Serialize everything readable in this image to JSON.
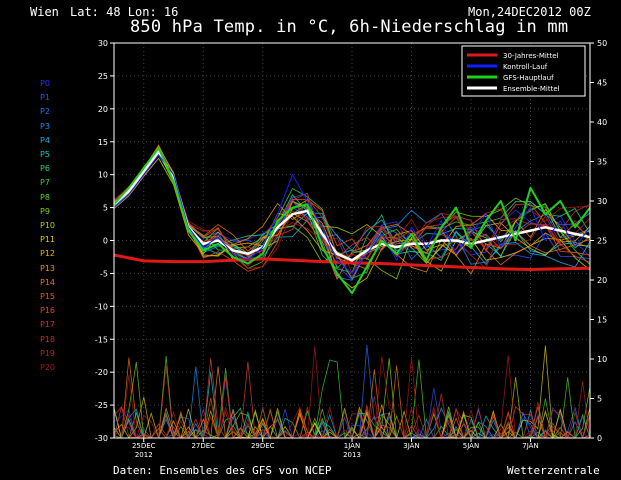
{
  "header": {
    "station": "Wien",
    "latlon": "Lat: 48 Lon: 16",
    "title": "850 hPa Temp. in °C, 6h-Niederschlag in mm",
    "run": "Mon,24DEC2012 00Z"
  },
  "members": [
    "P0",
    "P1",
    "P2",
    "P3",
    "P4",
    "P5",
    "P6",
    "P7",
    "P8",
    "P9",
    "P10",
    "P11",
    "P12",
    "P13",
    "P14",
    "P15",
    "P16",
    "P17",
    "P18",
    "P19",
    "P20"
  ],
  "member_colors": [
    "#3030ff",
    "#2850ff",
    "#2070ff",
    "#1890f8",
    "#10b0f0",
    "#10c8d0",
    "#20d080",
    "#30d040",
    "#50d020",
    "#80d010",
    "#b8d000",
    "#e0c800",
    "#f0b000",
    "#f09000",
    "#f07010",
    "#f05020",
    "#e04030",
    "#d03030",
    "#c02828",
    "#b82020",
    "#b01818"
  ],
  "footer": {
    "source": "Daten: Ensembles des GFS von NCEP",
    "brand": "Wetterzentrale"
  },
  "chart_data": {
    "type": "line",
    "left_axis": {
      "ylim": [
        -30,
        30
      ],
      "ticks": [
        30,
        25,
        20,
        15,
        10,
        5,
        0,
        -5,
        -10,
        -15,
        -20,
        -25,
        -30
      ]
    },
    "right_axis": {
      "ylim": [
        0,
        50
      ],
      "ticks": [
        50,
        45,
        40,
        35,
        30,
        25,
        20,
        15,
        10,
        5,
        0
      ]
    },
    "x_ticks": [
      {
        "day": 1,
        "label": "25DEC",
        "sub": "2012"
      },
      {
        "day": 3,
        "label": "27DEC",
        "sub": ""
      },
      {
        "day": 5,
        "label": "29DEC",
        "sub": ""
      },
      {
        "day": 8,
        "label": "1JAN",
        "sub": "2013"
      },
      {
        "day": 10,
        "label": "3JAN",
        "sub": ""
      },
      {
        "day": 12,
        "label": "5JAN",
        "sub": ""
      },
      {
        "day": 14,
        "label": "7JAN",
        "sub": ""
      }
    ],
    "xlim_days": [
      0,
      16
    ],
    "legend": [
      {
        "name": "30-Jahres-Mittel",
        "color": "#e01818"
      },
      {
        "name": "Kontroll-Lauf",
        "color": "#1020ff"
      },
      {
        "name": "GFS-Hauptlauf",
        "color": "#20d020"
      },
      {
        "name": "Ensemble-Mittel",
        "color": "#ffffff"
      }
    ],
    "series": [
      {
        "name": "30-Jahres-Mittel",
        "color": "#e01818",
        "width": 3,
        "x": [
          0,
          1,
          2,
          3,
          4,
          5,
          6,
          7,
          8,
          9,
          10,
          11,
          12,
          13,
          14,
          15,
          16
        ],
        "y": [
          -2.2,
          -3.1,
          -3.2,
          -3.2,
          -3.0,
          -2.8,
          -3.0,
          -3.2,
          -3.4,
          -3.5,
          -3.7,
          -3.9,
          -4.1,
          -4.3,
          -4.4,
          -4.3,
          -4.2
        ]
      },
      {
        "name": "Ensemble-Mittel",
        "color": "#ffffff",
        "width": 2.5,
        "x": [
          0,
          0.5,
          1,
          1.5,
          2,
          2.5,
          3,
          3.5,
          4,
          4.5,
          5,
          5.5,
          6,
          6.5,
          7,
          7.5,
          8,
          8.5,
          9,
          9.5,
          10,
          10.5,
          11,
          11.5,
          12,
          12.5,
          13,
          13.5,
          14,
          14.5,
          15,
          15.5,
          16
        ],
        "y": [
          5.5,
          7.5,
          10.5,
          13.5,
          9.5,
          2,
          -0.5,
          0,
          -1.5,
          -2,
          -1,
          2,
          4,
          4.5,
          1,
          -2,
          -3,
          -1.5,
          -0.5,
          -1,
          -0.5,
          -0.5,
          0,
          0,
          -0.5,
          0,
          0.5,
          1,
          1.5,
          2,
          1.5,
          1,
          0.5
        ]
      },
      {
        "name": "Kontroll-Lauf",
        "color": "#1020ff",
        "width": 1,
        "x": [
          0,
          0.5,
          1,
          1.5,
          2,
          2.5,
          3,
          3.5,
          4,
          4.5,
          5,
          5.5,
          6,
          6.5,
          7,
          7.5,
          8,
          8.5,
          9,
          9.5,
          10,
          10.5,
          11,
          11.5,
          12,
          12.5,
          13,
          13.5,
          14,
          14.5,
          15,
          15.5,
          16
        ],
        "y": [
          5,
          7,
          10,
          13,
          10,
          2,
          -1,
          0.5,
          -2,
          -3,
          -1,
          4,
          10,
          6,
          2,
          -3,
          -5,
          -2,
          1,
          -3,
          2,
          -1,
          3,
          -2,
          1,
          4,
          -1,
          2,
          5,
          0,
          3,
          -1,
          2
        ]
      },
      {
        "name": "GFS-Hauptlauf",
        "color": "#20d020",
        "width": 2,
        "x": [
          0,
          0.5,
          1,
          1.5,
          2,
          2.5,
          3,
          3.5,
          4,
          4.5,
          5,
          5.5,
          6,
          6.5,
          7,
          7.5,
          8,
          8.5,
          9,
          9.5,
          10,
          10.5,
          11,
          11.5,
          12,
          12.5,
          13,
          13.5,
          14,
          14.5,
          15,
          15.5,
          16
        ],
        "y": [
          5.5,
          8,
          11,
          14,
          9,
          1.5,
          -1.5,
          -0.5,
          -2.5,
          -3.5,
          -2,
          3,
          5,
          5.5,
          -1,
          -5,
          -8,
          -4,
          0,
          -2,
          1,
          -3,
          2,
          5,
          -1,
          3,
          6,
          0,
          8,
          4,
          6,
          2,
          5
        ]
      }
    ],
    "precip_note": "6h precipitation bars for ensemble members on right axis (mm)"
  }
}
